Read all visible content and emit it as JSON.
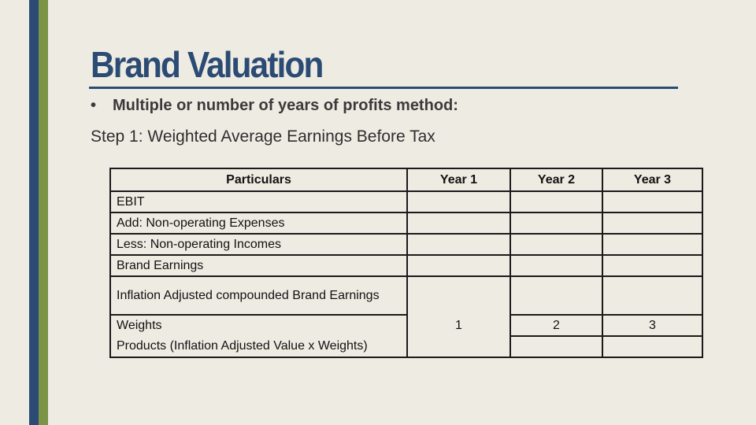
{
  "slide": {
    "title": "Brand Valuation",
    "bullet_marker": "•",
    "bullet": "Multiple or number of years of profits method:",
    "step": "Step 1: Weighted Average Earnings Before Tax",
    "colors": {
      "background": "#eeebe2",
      "title": "#2b4b74",
      "stripe_blue": "#2b4b74",
      "stripe_green": "#7b9445"
    }
  },
  "table": {
    "headers": [
      "Particulars",
      "Year 1",
      "Year 2",
      "Year 3"
    ],
    "rows": [
      {
        "label": "EBIT",
        "values": [
          "",
          "",
          ""
        ]
      },
      {
        "label": "Add: Non-operating Expenses",
        "values": [
          "",
          "",
          ""
        ]
      },
      {
        "label": "Less: Non-operating Incomes",
        "values": [
          "",
          "",
          ""
        ]
      },
      {
        "label": "Brand Earnings",
        "values": [
          "",
          "",
          ""
        ]
      },
      {
        "label": "Inflation Adjusted compounded Brand Earnings",
        "values": [
          "",
          "",
          ""
        ]
      },
      {
        "label": "Weights",
        "values": [
          "1",
          "2",
          "3"
        ]
      },
      {
        "label": "Products (Inflation Adjusted Value x Weights)",
        "values": [
          "",
          "",
          ""
        ]
      }
    ]
  }
}
